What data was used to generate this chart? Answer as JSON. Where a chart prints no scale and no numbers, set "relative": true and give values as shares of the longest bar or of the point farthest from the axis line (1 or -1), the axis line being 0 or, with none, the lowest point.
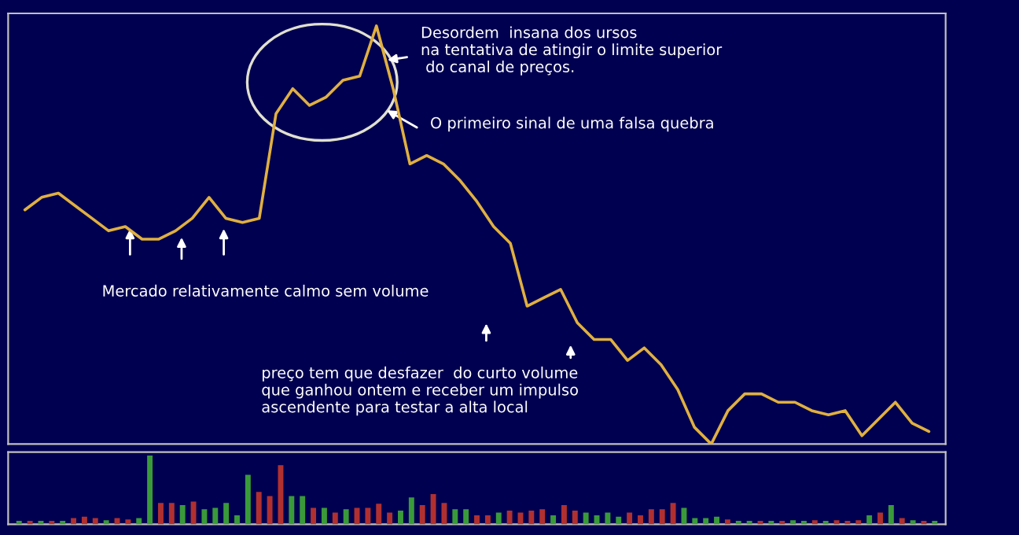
{
  "chart_data": [
    {
      "type": "line",
      "relative": true,
      "grid": false,
      "legend": false,
      "marker": "none",
      "line_style": "solid",
      "categories": [
        null,
        null,
        null,
        null,
        null,
        null,
        null,
        null,
        null,
        null,
        null,
        null,
        null,
        null,
        null,
        null,
        null,
        null,
        null,
        null,
        null,
        null,
        null,
        null,
        null,
        null,
        null,
        null,
        null,
        null,
        null,
        null,
        null,
        null,
        null,
        null,
        null,
        null,
        null,
        null,
        null,
        null,
        null,
        null,
        null,
        null,
        null,
        null,
        null,
        null,
        null,
        null,
        null,
        null,
        null
      ],
      "series": [
        {
          "color": "#e0b040",
          "values": [
            0.56,
            0.59,
            0.6,
            0.57,
            0.54,
            0.51,
            0.52,
            0.49,
            0.49,
            0.51,
            0.54,
            0.59,
            0.54,
            0.53,
            0.54,
            0.79,
            0.85,
            0.81,
            0.83,
            0.87,
            0.88,
            1,
            0.85,
            0.67,
            0.69,
            0.67,
            0.63,
            0.58,
            0.52,
            0.48,
            0.33,
            0.35,
            0.37,
            0.29,
            0.25,
            0.25,
            0.2,
            0.23,
            0.19,
            0.13,
            0.04,
            0,
            0.08,
            0.12,
            0.12,
            0.1,
            0.1,
            0.08,
            0.07,
            0.08,
            0.02,
            0.06,
            0.1,
            0.05,
            0.03
          ]
        }
      ],
      "annotations": [
        "Desordem  insana dos ursos\nna tentativa de atingir o limite superior\n do canal de preços.",
        "O primeiro sinal de uma falsa quebra",
        "Mercado relativamente calmo sem volume",
        "preço tem que desfazer  do curto volume\nque ganhou ontem e receber um impulso\nascendente para testar a alta local"
      ]
    },
    {
      "type": "bar",
      "relative": true,
      "grid": false,
      "legend": false,
      "categories": [
        null,
        null,
        null,
        null,
        null,
        null,
        null,
        null,
        null,
        null,
        null,
        null,
        null,
        null,
        null,
        null,
        null,
        null,
        null,
        null,
        null,
        null,
        null,
        null,
        null,
        null,
        null,
        null,
        null,
        null,
        null,
        null,
        null,
        null,
        null,
        null,
        null,
        null,
        null,
        null,
        null,
        null,
        null,
        null,
        null,
        null,
        null,
        null,
        null,
        null,
        null,
        null,
        null,
        null,
        null,
        null,
        null,
        null,
        null,
        null,
        null,
        null,
        null,
        null,
        null,
        null,
        null,
        null,
        null,
        null,
        null,
        null,
        null,
        null,
        null,
        null,
        null,
        null,
        null,
        null,
        null,
        null,
        null,
        null,
        null
      ],
      "values": [
        0.05,
        0.05,
        0.05,
        0.05,
        0.05,
        0.09,
        0.11,
        0.09,
        0.06,
        0.09,
        0.07,
        0.09,
        1,
        0.31,
        0.31,
        0.28,
        0.33,
        0.22,
        0.24,
        0.31,
        0.13,
        0.72,
        0.47,
        0.41,
        0.86,
        0.41,
        0.41,
        0.24,
        0.24,
        0.17,
        0.22,
        0.24,
        0.24,
        0.3,
        0.17,
        0.2,
        0.39,
        0.28,
        0.44,
        0.31,
        0.22,
        0.22,
        0.13,
        0.13,
        0.17,
        0.2,
        0.17,
        0.2,
        0.22,
        0.13,
        0.28,
        0.2,
        0.17,
        0.13,
        0.17,
        0.11,
        0.17,
        0.13,
        0.22,
        0.22,
        0.31,
        0.24,
        0.09,
        0.09,
        0.11,
        0.07,
        0.05,
        0.05,
        0.05,
        0.05,
        0.05,
        0.06,
        0.05,
        0.06,
        0.05,
        0.06,
        0.05,
        0.06,
        0.13,
        0.17,
        0.28,
        0.09,
        0.06,
        0.05,
        0.05
      ],
      "colors": [
        "#3a9a3a",
        "#b03030",
        "#3a9a3a",
        "#b03030",
        "#3a9a3a",
        "#b03030",
        "#b03030",
        "#b03030",
        "#3a9a3a",
        "#b03030",
        "#b03030",
        "#3a9a3a",
        "#3a9a3a",
        "#b03030",
        "#b03030",
        "#3a9a3a",
        "#b03030",
        "#3a9a3a",
        "#3a9a3a",
        "#3a9a3a",
        "#3a9a3a",
        "#3a9a3a",
        "#b03030",
        "#b03030",
        "#b03030",
        "#3a9a3a",
        "#3a9a3a",
        "#b03030",
        "#3a9a3a",
        "#b03030",
        "#3a9a3a",
        "#b03030",
        "#b03030",
        "#b03030",
        "#b03030",
        "#3a9a3a",
        "#3a9a3a",
        "#b03030",
        "#b03030",
        "#b03030",
        "#3a9a3a",
        "#3a9a3a",
        "#b03030",
        "#b03030",
        "#3a9a3a",
        "#b03030",
        "#b03030",
        "#b03030",
        "#b03030",
        "#3a9a3a",
        "#b03030",
        "#b03030",
        "#3a9a3a",
        "#3a9a3a",
        "#3a9a3a",
        "#3a9a3a",
        "#b03030",
        "#b03030",
        "#b03030",
        "#b03030",
        "#b03030",
        "#3a9a3a",
        "#3a9a3a",
        "#3a9a3a",
        "#3a9a3a",
        "#b03030",
        "#3a9a3a",
        "#3a9a3a",
        "#b03030",
        "#3a9a3a",
        "#b03030",
        "#3a9a3a",
        "#3a9a3a",
        "#b03030",
        "#3a9a3a",
        "#b03030",
        "#b03030",
        "#b03030",
        "#3a9a3a",
        "#b03030",
        "#3a9a3a",
        "#b03030",
        "#3a9a3a",
        "#b03030",
        "#3a9a3a"
      ]
    }
  ]
}
